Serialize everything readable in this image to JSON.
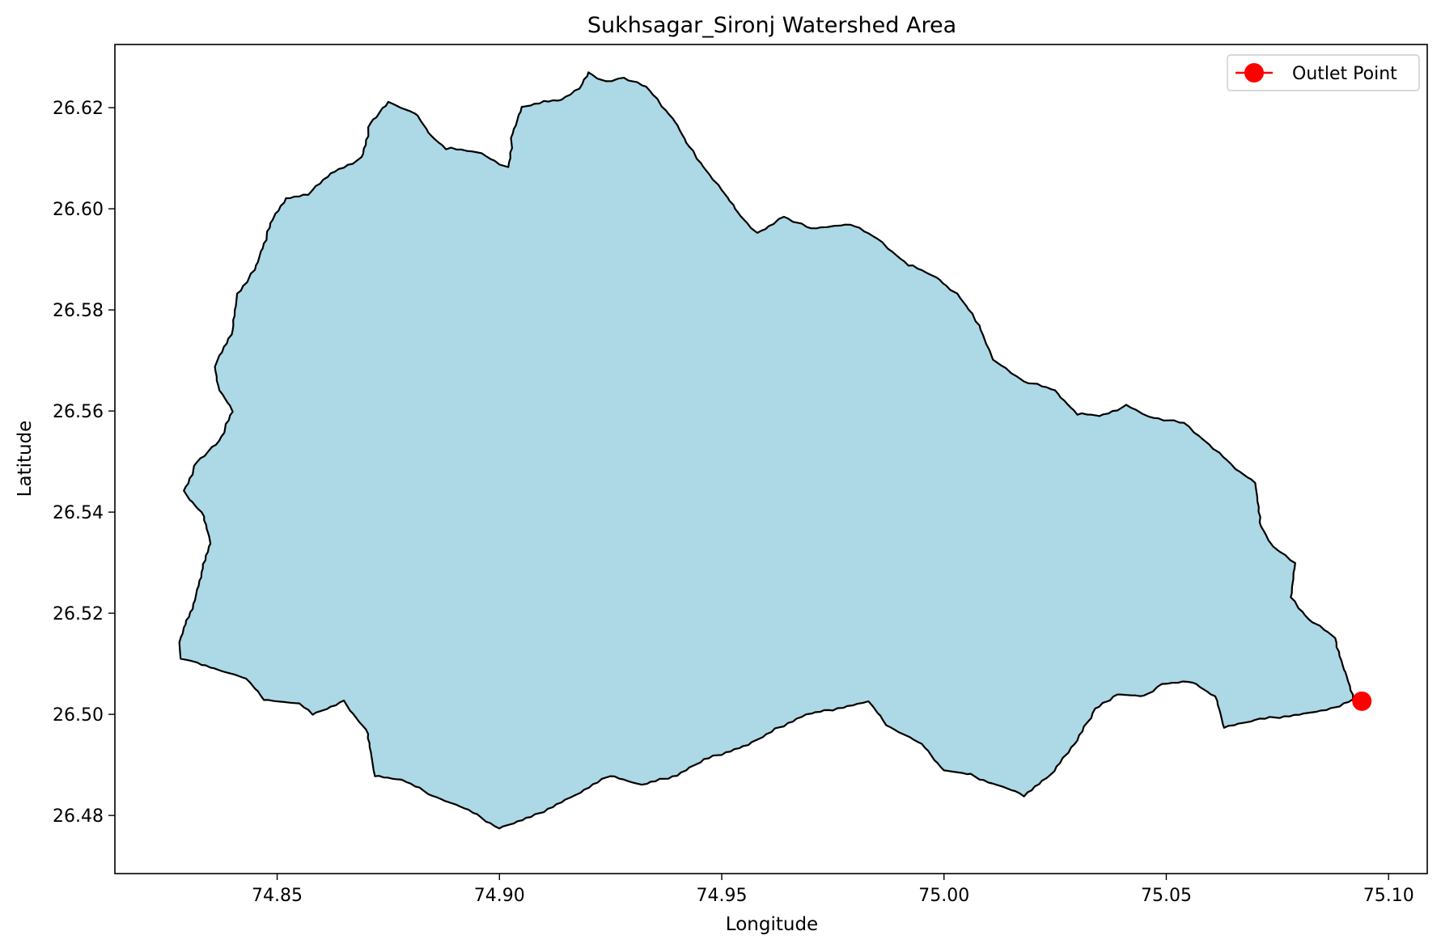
{
  "title": "Sukhsagar_Sironj Watershed Area",
  "xlabel": "Longitude",
  "ylabel": "Latitude",
  "colors": {
    "watershed_fill": "#add8e6",
    "watershed_edge": "#000000",
    "outlet": "#ff0000"
  },
  "legend": {
    "placement": "top-right",
    "entries": [
      {
        "label": "Outlet Point",
        "color": "#ff0000",
        "marker": "circle-with-line"
      }
    ]
  },
  "chart_data": {
    "type": "map",
    "title": "Sukhsagar_Sironj Watershed Area",
    "xlabel": "Longitude",
    "ylabel": "Latitude",
    "xlim": [
      74.8135,
      75.1087
    ],
    "ylim": [
      26.4685,
      26.6325
    ],
    "xticks": [
      74.85,
      74.9,
      74.95,
      75.0,
      75.05,
      75.1
    ],
    "xtick_labels": [
      "74.85",
      "74.90",
      "74.95",
      "75.00",
      "75.05",
      "75.10"
    ],
    "yticks": [
      26.48,
      26.5,
      26.52,
      26.54,
      26.56,
      26.58,
      26.6,
      26.62
    ],
    "ytick_labels": [
      "26.48",
      "26.50",
      "26.52",
      "26.54",
      "26.56",
      "26.58",
      "26.60",
      "26.62"
    ],
    "grid": false,
    "outlet_point": {
      "lon": 75.094,
      "lat": 26.5026,
      "label": "Outlet Point"
    },
    "watershed_boundary": [
      [
        74.828,
        26.514
      ],
      [
        74.8283,
        26.511
      ],
      [
        74.833,
        26.51
      ],
      [
        74.843,
        26.507
      ],
      [
        74.847,
        26.503
      ],
      [
        74.855,
        26.502
      ],
      [
        74.858,
        26.5
      ],
      [
        74.865,
        26.5025
      ],
      [
        74.87,
        26.497
      ],
      [
        74.872,
        26.488
      ],
      [
        74.878,
        26.487
      ],
      [
        74.885,
        26.484
      ],
      [
        74.893,
        26.481
      ],
      [
        74.9,
        26.4775
      ],
      [
        74.908,
        26.48
      ],
      [
        74.917,
        26.484
      ],
      [
        74.925,
        26.488
      ],
      [
        74.932,
        26.486
      ],
      [
        74.94,
        26.488
      ],
      [
        74.946,
        26.491
      ],
      [
        74.956,
        26.494
      ],
      [
        74.962,
        26.497
      ],
      [
        74.969,
        26.5
      ],
      [
        74.975,
        26.501
      ],
      [
        74.983,
        26.5025
      ],
      [
        74.987,
        26.498
      ],
      [
        74.995,
        26.494
      ],
      [
        75.0,
        26.489
      ],
      [
        75.006,
        26.488
      ],
      [
        75.012,
        26.486
      ],
      [
        75.018,
        26.484
      ],
      [
        75.024,
        26.488
      ],
      [
        75.03,
        26.495
      ],
      [
        75.034,
        26.501
      ],
      [
        75.039,
        26.504
      ],
      [
        75.045,
        26.5035
      ],
      [
        75.049,
        26.506
      ],
      [
        75.056,
        26.5065
      ],
      [
        75.061,
        26.5035
      ],
      [
        75.063,
        26.4975
      ],
      [
        75.071,
        26.499
      ],
      [
        75.08,
        26.5
      ],
      [
        75.087,
        26.501
      ],
      [
        75.092,
        26.503
      ],
      [
        75.09,
        26.509
      ],
      [
        75.088,
        26.515
      ],
      [
        75.082,
        26.519
      ],
      [
        75.078,
        26.523
      ],
      [
        75.079,
        26.53
      ],
      [
        75.074,
        26.533
      ],
      [
        75.071,
        26.538
      ],
      [
        75.07,
        26.546
      ],
      [
        75.065,
        26.549
      ],
      [
        75.059,
        26.554
      ],
      [
        75.054,
        26.5575
      ],
      [
        75.046,
        26.559
      ],
      [
        75.041,
        26.561
      ],
      [
        75.035,
        26.559
      ],
      [
        75.03,
        26.5595
      ],
      [
        75.025,
        26.564
      ],
      [
        75.018,
        26.566
      ],
      [
        75.011,
        26.57
      ],
      [
        75.008,
        26.577
      ],
      [
        75.003,
        26.583
      ],
      [
        74.999,
        26.586
      ],
      [
        74.992,
        26.589
      ],
      [
        74.985,
        26.594
      ],
      [
        74.979,
        26.597
      ],
      [
        74.97,
        26.596
      ],
      [
        74.964,
        26.5985
      ],
      [
        74.958,
        26.595
      ],
      [
        74.953,
        26.6
      ],
      [
        74.948,
        26.606
      ],
      [
        74.942,
        26.613
      ],
      [
        74.939,
        26.618
      ],
      [
        74.933,
        26.624
      ],
      [
        74.928,
        26.626
      ],
      [
        74.924,
        26.625
      ],
      [
        74.92,
        26.627
      ],
      [
        74.918,
        26.624
      ],
      [
        74.914,
        26.6215
      ],
      [
        74.909,
        26.621
      ],
      [
        74.905,
        26.62
      ],
      [
        74.903,
        26.615
      ],
      [
        74.902,
        26.608
      ],
      [
        74.896,
        26.611
      ],
      [
        74.888,
        26.612
      ],
      [
        74.884,
        26.615
      ],
      [
        74.881,
        26.619
      ],
      [
        74.875,
        26.621
      ],
      [
        74.871,
        26.617
      ],
      [
        74.869,
        26.61
      ],
      [
        74.862,
        26.607
      ],
      [
        74.857,
        26.603
      ],
      [
        74.852,
        26.602
      ],
      [
        74.849,
        26.598
      ],
      [
        74.847,
        26.593
      ],
      [
        74.845,
        26.588
      ],
      [
        74.841,
        26.583
      ],
      [
        74.84,
        26.576
      ],
      [
        74.836,
        26.569
      ],
      [
        74.837,
        26.564
      ],
      [
        74.84,
        26.56
      ],
      [
        74.837,
        26.554
      ],
      [
        74.832,
        26.55
      ],
      [
        74.829,
        26.544
      ],
      [
        74.833,
        26.54
      ],
      [
        74.835,
        26.534
      ],
      [
        74.833,
        26.528
      ],
      [
        74.831,
        26.521
      ],
      [
        74.829,
        26.517
      ]
    ]
  }
}
